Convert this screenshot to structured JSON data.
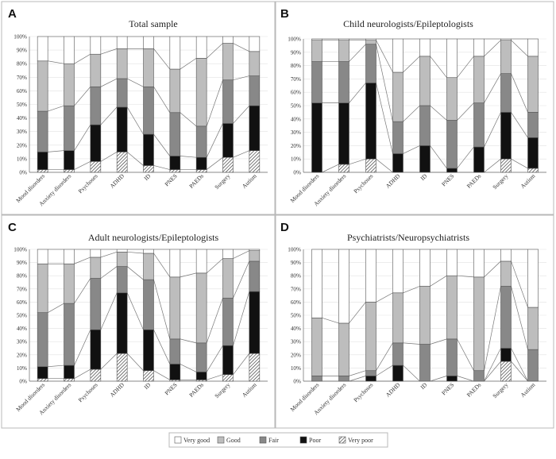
{
  "colors": {
    "very_good": "#ffffff",
    "good": "#bdbdbd",
    "fair": "#888888",
    "poor": "#111111",
    "very_poor": "hatch"
  },
  "legend": [
    "Very good",
    "Good",
    "Fair",
    "Poor",
    "Very poor"
  ],
  "chart_data": [
    {
      "type": "bar",
      "stacked": true,
      "panel_label": "A",
      "title": "Total sample",
      "categories": [
        "Mood disorders",
        "Anxiety disorders",
        "Psychoses",
        "ADHD",
        "ID",
        "PNES",
        "PAEDs",
        "Surgery",
        "Autism"
      ],
      "ylim": [
        0,
        100
      ],
      "yticks": [
        "0%",
        "10%",
        "20%",
        "30%",
        "40%",
        "50%",
        "60%",
        "70%",
        "80%",
        "90%",
        "100%"
      ],
      "series": [
        {
          "name": "Very poor",
          "values": [
            2,
            2,
            8,
            15,
            5,
            2,
            2,
            11,
            16
          ]
        },
        {
          "name": "Poor",
          "values": [
            13,
            14,
            27,
            33,
            23,
            10,
            9,
            25,
            33
          ]
        },
        {
          "name": "Fair",
          "values": [
            30,
            33,
            28,
            21,
            35,
            32,
            23,
            32,
            22
          ]
        },
        {
          "name": "Good",
          "values": [
            37,
            31,
            24,
            22,
            28,
            32,
            50,
            27,
            18
          ]
        },
        {
          "name": "Very good",
          "values": [
            18,
            20,
            13,
            9,
            9,
            24,
            16,
            5,
            11
          ]
        }
      ]
    },
    {
      "type": "bar",
      "stacked": true,
      "panel_label": "B",
      "title": "Child neurologists/Epileptologists",
      "categories": [
        "Mood disorders",
        "Anxiety disorders",
        "Psychoses",
        "ADHD",
        "ID",
        "PNES",
        "PAEDs",
        "Surgery",
        "Autism"
      ],
      "ylim": [
        0,
        100
      ],
      "yticks": [
        "0%",
        "10%",
        "20%",
        "30%",
        "40%",
        "50%",
        "60%",
        "70%",
        "80%",
        "90%",
        "100%"
      ],
      "series": [
        {
          "name": "Very poor",
          "values": [
            0,
            6,
            10,
            0,
            0,
            0,
            0,
            10,
            3
          ]
        },
        {
          "name": "Poor",
          "values": [
            52,
            46,
            57,
            14,
            20,
            3,
            19,
            35,
            23
          ]
        },
        {
          "name": "Fair",
          "values": [
            31,
            31,
            29,
            24,
            30,
            36,
            33,
            29,
            19
          ]
        },
        {
          "name": "Good",
          "values": [
            16,
            16,
            3,
            37,
            37,
            32,
            35,
            25,
            42
          ]
        },
        {
          "name": "Very good",
          "values": [
            1,
            1,
            1,
            25,
            13,
            29,
            13,
            1,
            13
          ]
        }
      ]
    },
    {
      "type": "bar",
      "stacked": true,
      "panel_label": "C",
      "title": "Adult neurologists/Epileptologists",
      "categories": [
        "Mood disorders",
        "Anxiety disorders",
        "Psychoses",
        "ADHD",
        "ID",
        "PNES",
        "PAEDs",
        "Surgery",
        "Autism"
      ],
      "ylim": [
        0,
        100
      ],
      "yticks": [
        "0%",
        "10%",
        "20%",
        "30%",
        "40%",
        "50%",
        "60%",
        "70%",
        "80%",
        "90%",
        "100%"
      ],
      "series": [
        {
          "name": "Very poor",
          "values": [
            2,
            2,
            9,
            21,
            8,
            1,
            1,
            5,
            21
          ]
        },
        {
          "name": "Poor",
          "values": [
            9,
            10,
            30,
            46,
            31,
            12,
            6,
            22,
            47
          ]
        },
        {
          "name": "Fair",
          "values": [
            41,
            47,
            39,
            20,
            38,
            19,
            22,
            36,
            23
          ]
        },
        {
          "name": "Good",
          "values": [
            37,
            30,
            16,
            11,
            20,
            47,
            53,
            30,
            8
          ]
        },
        {
          "name": "Very good",
          "values": [
            11,
            11,
            6,
            2,
            3,
            21,
            18,
            7,
            1
          ]
        }
      ]
    },
    {
      "type": "bar",
      "stacked": true,
      "panel_label": "D",
      "title": "Psychiatrists/Neuropsychiatrists",
      "categories": [
        "Mood disorders",
        "Anxiety disorders",
        "Psychoses",
        "ADHD",
        "ID",
        "PNES",
        "PAEDs",
        "Surgery",
        "Autism"
      ],
      "ylim": [
        0,
        100
      ],
      "yticks": [
        "0%",
        "10%",
        "20%",
        "30%",
        "40%",
        "50%",
        "60%",
        "70%",
        "80%",
        "90%",
        "100%"
      ],
      "series": [
        {
          "name": "Very poor",
          "values": [
            0,
            0,
            0,
            0,
            0,
            0,
            0,
            15,
            0
          ]
        },
        {
          "name": "Poor",
          "values": [
            0,
            0,
            4,
            12,
            0,
            4,
            0,
            10,
            0
          ]
        },
        {
          "name": "Fair",
          "values": [
            4,
            4,
            4,
            17,
            28,
            28,
            8,
            47,
            24
          ]
        },
        {
          "name": "Good",
          "values": [
            44,
            40,
            52,
            38,
            44,
            48,
            71,
            19,
            32
          ]
        },
        {
          "name": "Very good",
          "values": [
            52,
            56,
            40,
            33,
            28,
            20,
            21,
            9,
            44
          ]
        }
      ]
    }
  ]
}
